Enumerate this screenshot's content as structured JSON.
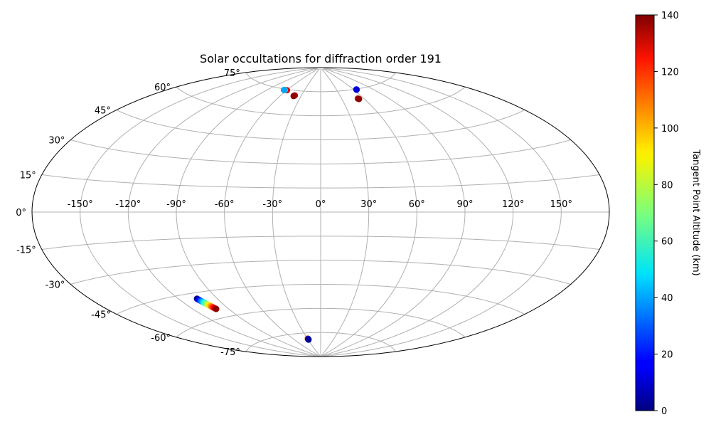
{
  "chart_data": {
    "type": "scatter",
    "projection": "aitoff",
    "title": "Solar occultations for diffraction order 191",
    "grid": true,
    "x_tick_labels": [
      "-150°",
      "-120°",
      "-90°",
      "-60°",
      "-30°",
      "0°",
      "30°",
      "60°",
      "90°",
      "120°",
      "150°"
    ],
    "x_ticks": [
      -150,
      -120,
      -90,
      -60,
      -30,
      0,
      30,
      60,
      90,
      120,
      150
    ],
    "y_tick_labels": [
      "-75°",
      "-60°",
      "-45°",
      "-30°",
      "-15°",
      "0°",
      "15°",
      "30°",
      "45°",
      "60°",
      "75°"
    ],
    "y_ticks": [
      -75,
      -60,
      -45,
      -30,
      -15,
      0,
      15,
      30,
      45,
      60,
      75
    ],
    "colorbar": {
      "label": "Tangent Point Altitude (km)",
      "range": [
        0,
        140
      ],
      "ticks": [
        0,
        20,
        40,
        60,
        80,
        100,
        120,
        140
      ],
      "tick_labels": [
        "0",
        "20",
        "40",
        "60",
        "80",
        "100",
        "120",
        "140"
      ],
      "colormap": "jet"
    },
    "points": [
      {
        "lon": -60,
        "lat": 74.5,
        "alt": 130
      },
      {
        "lon": -62,
        "lat": 74.5,
        "alt": 125
      },
      {
        "lon": -64,
        "lat": 74.4,
        "alt": 60
      },
      {
        "lon": -65,
        "lat": 74.4,
        "alt": 40
      },
      {
        "lon": -40,
        "lat": 72.0,
        "alt": 132
      },
      {
        "lon": -41,
        "lat": 71.6,
        "alt": 138
      },
      {
        "lon": 52,
        "lat": 69.5,
        "alt": 130
      },
      {
        "lon": 53,
        "lat": 69.2,
        "alt": 138
      },
      {
        "lon": 65,
        "lat": 74.8,
        "alt": 22
      },
      {
        "lon": 64.5,
        "lat": 74.6,
        "alt": 12
      },
      {
        "lon": -29,
        "lat": -78.5,
        "alt": 110
      },
      {
        "lon": -29,
        "lat": -78.8,
        "alt": 20
      },
      {
        "lon": -29,
        "lat": -79.0,
        "alt": 8
      },
      {
        "lon": -29,
        "lat": -79.2,
        "alt": 3
      },
      {
        "lon": -106.0,
        "lat": -48.2,
        "alt": 2
      },
      {
        "lon": -105.7,
        "lat": -48.6,
        "alt": 10
      },
      {
        "lon": -105.4,
        "lat": -49.0,
        "alt": 18
      },
      {
        "lon": -105.1,
        "lat": -49.4,
        "alt": 26
      },
      {
        "lon": -104.8,
        "lat": -49.8,
        "alt": 34
      },
      {
        "lon": -104.5,
        "lat": -50.2,
        "alt": 42
      },
      {
        "lon": -104.2,
        "lat": -50.6,
        "alt": 50
      },
      {
        "lon": -103.9,
        "lat": -51.0,
        "alt": 58
      },
      {
        "lon": -103.6,
        "lat": -51.4,
        "alt": 66
      },
      {
        "lon": -103.3,
        "lat": -51.8,
        "alt": 74
      },
      {
        "lon": -103.0,
        "lat": -52.2,
        "alt": 82
      },
      {
        "lon": -102.7,
        "lat": -52.6,
        "alt": 90
      },
      {
        "lon": -102.4,
        "lat": -53.0,
        "alt": 98
      },
      {
        "lon": -102.1,
        "lat": -53.4,
        "alt": 106
      },
      {
        "lon": -101.8,
        "lat": -53.8,
        "alt": 114
      },
      {
        "lon": -101.5,
        "lat": -54.2,
        "alt": 122
      },
      {
        "lon": -101.2,
        "lat": -54.6,
        "alt": 130
      },
      {
        "lon": -100.9,
        "lat": -55.0,
        "alt": 138
      }
    ]
  }
}
